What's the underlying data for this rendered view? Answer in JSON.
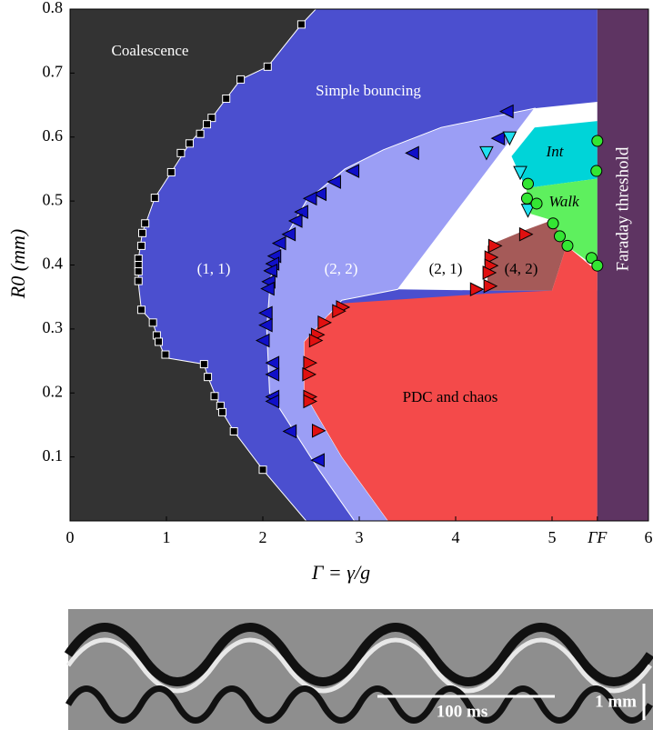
{
  "chart_data": {
    "type": "scatter",
    "x_label": "Γ = γ/g",
    "y_label": "R0 (mm)",
    "xlim": [
      0,
      6
    ],
    "ylim": [
      0,
      0.8
    ],
    "xticks": [
      0,
      1,
      2,
      3,
      4,
      5,
      {
        "value": 5.47,
        "label": "ΓF"
      },
      6
    ],
    "yticks": [
      0.1,
      0.2,
      0.3,
      0.4,
      0.5,
      0.6,
      0.7,
      0.8
    ],
    "regions": [
      {
        "name": "Simple bouncing",
        "color": "#4b4fcf",
        "points": [
          [
            0,
            0
          ],
          [
            5.47,
            0
          ],
          [
            5.47,
            0.8
          ],
          [
            0,
            0.8
          ]
        ]
      },
      {
        "name": "Coalescence",
        "color": "#333333",
        "points": [
          [
            0,
            0.8
          ],
          [
            2.55,
            0.8
          ],
          [
            2.4,
            0.776
          ],
          [
            2.05,
            0.71
          ],
          [
            1.77,
            0.69
          ],
          [
            1.47,
            0.63
          ],
          [
            1.24,
            0.59
          ],
          [
            1.05,
            0.545
          ],
          [
            0.88,
            0.505
          ],
          [
            0.75,
            0.45
          ],
          [
            0.71,
            0.41
          ],
          [
            0.71,
            0.37
          ],
          [
            0.74,
            0.33
          ],
          [
            0.86,
            0.31
          ],
          [
            0.92,
            0.28
          ],
          [
            0.99,
            0.255
          ],
          [
            1.39,
            0.245
          ],
          [
            1.43,
            0.225
          ],
          [
            1.58,
            0.17
          ],
          [
            1.7,
            0.14
          ],
          [
            2.0,
            0.08
          ],
          [
            2.45,
            0
          ],
          [
            0,
            0
          ]
        ]
      },
      {
        "name": "(1, 1)",
        "color": "#4b4fcf",
        "points": []
      },
      {
        "name": "(2, 2)",
        "color": "#9b9ef5",
        "points": [
          [
            2.95,
            0
          ],
          [
            2.58,
            0.08
          ],
          [
            2.07,
            0.2
          ],
          [
            2.04,
            0.3
          ],
          [
            2.08,
            0.38
          ],
          [
            2.22,
            0.44
          ],
          [
            2.45,
            0.5
          ],
          [
            2.85,
            0.55
          ],
          [
            3.25,
            0.58
          ],
          [
            3.85,
            0.615
          ],
          [
            4.82,
            0.645
          ],
          [
            3.4,
            0.362
          ],
          [
            2.82,
            0.345
          ],
          [
            2.67,
            0.32
          ],
          [
            2.43,
            0.28
          ],
          [
            2.43,
            0.2
          ],
          [
            2.82,
            0.1
          ],
          [
            3.3,
            0
          ]
        ]
      },
      {
        "name": "(2, 1)",
        "color": "#ffffff",
        "points": [
          [
            3.4,
            0.362
          ],
          [
            4.82,
            0.645
          ],
          [
            5.47,
            0.655
          ],
          [
            5.47,
            0.36
          ],
          [
            4.4,
            0.36
          ]
        ]
      },
      {
        "name": "Int",
        "color": "#00d4d8",
        "points": [
          [
            4.58,
            0.57
          ],
          [
            4.82,
            0.615
          ],
          [
            5.47,
            0.625
          ],
          [
            5.47,
            0.535
          ],
          [
            4.73,
            0.52
          ]
        ]
      },
      {
        "name": "Walk",
        "color": "#5ef05e",
        "points": [
          [
            4.73,
            0.52
          ],
          [
            5.47,
            0.535
          ],
          [
            5.47,
            0.395
          ],
          [
            5.15,
            0.43
          ],
          [
            5.0,
            0.47
          ],
          [
            4.78,
            0.48
          ]
        ]
      },
      {
        "name": "(4, 2)",
        "color": "#a55a58",
        "points": [
          [
            4.33,
            0.36
          ],
          [
            4.33,
            0.43
          ],
          [
            4.73,
            0.455
          ],
          [
            5.0,
            0.47
          ],
          [
            5.15,
            0.43
          ],
          [
            5.0,
            0.36
          ]
        ]
      },
      {
        "name": "PDC and chaos",
        "color": "#f44a4a",
        "points": [
          [
            3.3,
            0
          ],
          [
            2.82,
            0.1
          ],
          [
            2.43,
            0.2
          ],
          [
            2.43,
            0.28
          ],
          [
            2.67,
            0.32
          ],
          [
            2.82,
            0.34
          ],
          [
            4.3,
            0.355
          ],
          [
            5.0,
            0.36
          ],
          [
            5.15,
            0.43
          ],
          [
            5.47,
            0.39
          ],
          [
            5.47,
            0
          ]
        ]
      },
      {
        "name": "Faraday threshold",
        "color": "#5e3462",
        "points": [
          [
            5.47,
            0
          ],
          [
            6,
            0
          ],
          [
            6,
            0.8
          ],
          [
            5.47,
            0.8
          ]
        ]
      }
    ],
    "series": [
      {
        "marker": "square",
        "color": "#000000",
        "x": [
          2.4,
          2.05,
          1.77,
          1.62,
          1.47,
          1.42,
          1.35,
          1.24,
          1.15,
          1.05,
          0.88,
          0.78,
          0.75,
          0.74,
          0.71,
          0.71,
          0.71,
          0.71,
          0.74,
          0.86,
          0.9,
          0.92,
          0.99,
          1.39,
          1.43,
          1.5,
          1.56,
          1.58,
          1.7,
          2.0
        ],
        "values": [
          0.776,
          0.71,
          0.69,
          0.66,
          0.63,
          0.62,
          0.605,
          0.59,
          0.575,
          0.545,
          0.505,
          0.465,
          0.45,
          0.43,
          0.41,
          0.4,
          0.39,
          0.375,
          0.33,
          0.31,
          0.29,
          0.28,
          0.26,
          0.245,
          0.225,
          0.195,
          0.18,
          0.17,
          0.14,
          0.08
        ]
      },
      {
        "marker": "left",
        "color": "#1010c8",
        "x": [
          4.53,
          4.44,
          3.55,
          2.93,
          2.74,
          2.59,
          2.49,
          2.4,
          2.34,
          2.27,
          2.17,
          2.12,
          2.1,
          2.08,
          2.06,
          2.05,
          2.03,
          2.03,
          2.0,
          2.1,
          2.1,
          2.1,
          2.1,
          2.28,
          2.57
        ],
        "values": [
          0.64,
          0.598,
          0.575,
          0.547,
          0.53,
          0.511,
          0.504,
          0.483,
          0.469,
          0.448,
          0.434,
          0.414,
          0.402,
          0.391,
          0.374,
          0.363,
          0.325,
          0.306,
          0.282,
          0.247,
          0.229,
          0.194,
          0.187,
          0.14,
          0.095
        ]
      },
      {
        "marker": "right",
        "color": "#e01010",
        "x": [
          4.73,
          4.41,
          4.37,
          4.37,
          4.35,
          4.36,
          4.22,
          2.83,
          2.79,
          2.64,
          2.57,
          2.55,
          2.49,
          2.48,
          2.49,
          2.49,
          2.58
        ],
        "values": [
          0.448,
          0.43,
          0.412,
          0.399,
          0.388,
          0.367,
          0.362,
          0.334,
          0.328,
          0.31,
          0.291,
          0.282,
          0.247,
          0.229,
          0.194,
          0.187,
          0.141
        ]
      },
      {
        "marker": "down",
        "color": "#20e0f0",
        "x": [
          4.56,
          4.32,
          4.67,
          4.75
        ],
        "values": [
          0.598,
          0.575,
          0.544,
          0.485
        ]
      },
      {
        "marker": "circle",
        "color": "#33e633",
        "x": [
          5.47,
          5.46,
          4.75,
          4.74,
          4.84,
          5.01,
          5.08,
          5.16,
          5.41,
          5.47
        ],
        "values": [
          0.594,
          0.547,
          0.527,
          0.504,
          0.496,
          0.465,
          0.445,
          0.43,
          0.411,
          0.399
        ]
      }
    ]
  },
  "image": {
    "time_scale": "100 ms",
    "length_scale": "1 mm"
  }
}
